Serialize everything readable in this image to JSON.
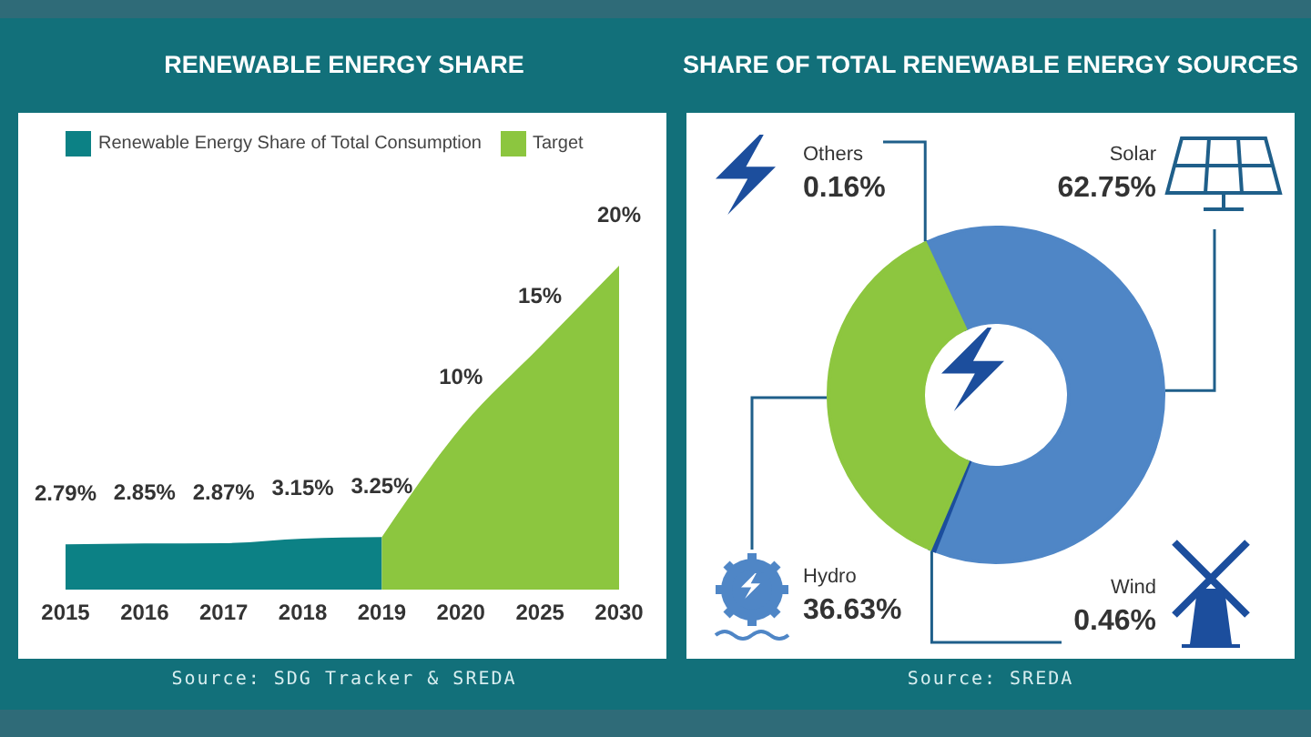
{
  "chart_data": [
    {
      "type": "area",
      "title": "RENEWABLE ENERGY SHARE",
      "categories": [
        "2015",
        "2016",
        "2017",
        "2018",
        "2019",
        "2020",
        "2025",
        "2030"
      ],
      "series": [
        {
          "name": "Renewable Energy Share of Total Consumption",
          "color": "#0c8185",
          "values": [
            2.79,
            2.85,
            2.87,
            3.15,
            3.25,
            null,
            null,
            null
          ],
          "value_labels": [
            "2.79%",
            "2.85%",
            "2.87%",
            "3.15%",
            "3.25%",
            null,
            null,
            null
          ]
        },
        {
          "name": "Target",
          "color": "#8cc63f",
          "values": [
            null,
            null,
            null,
            null,
            3.25,
            10,
            15,
            20
          ],
          "value_labels": [
            null,
            null,
            null,
            null,
            null,
            "10%",
            "15%",
            "20%"
          ]
        }
      ],
      "legend": "top left",
      "tick_labels": "x",
      "annotations": [
        "Source: SDG Tracker & SREDA"
      ]
    },
    {
      "type": "donut",
      "title": "SHARE OF TOTAL RENEWABLE ENERGY SOURCES",
      "categories": [
        "Others",
        "Solar",
        "Wind",
        "Hydro"
      ],
      "values": [
        0.16,
        62.75,
        0.46,
        36.63
      ],
      "colors": [
        "#1c4e9d",
        "#4f86c6",
        "#1c4e9d",
        "#8dc63f"
      ],
      "value_labels": [
        "0.16%",
        "62.75%",
        "0.46%",
        "36.63%"
      ],
      "legend": false,
      "annotations": [
        "Source: SREDA"
      ]
    }
  ]
}
